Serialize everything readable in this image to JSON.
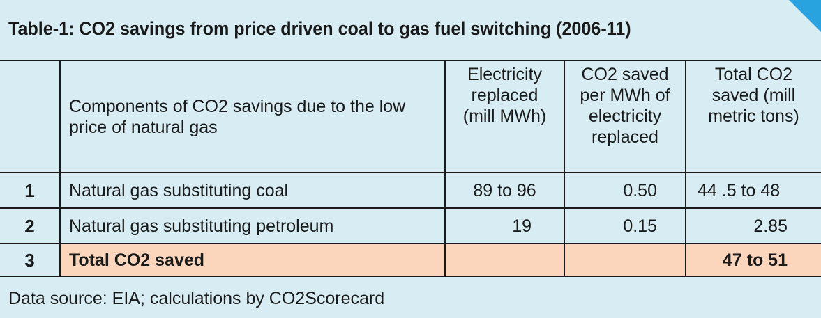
{
  "title": "Table-1: CO2 savings from price driven coal to gas fuel switching (2006-11)",
  "header": {
    "num": "",
    "component": "Components of CO2 savings due to the low price of natural gas",
    "electricity": "Electricity replaced (mill MWh)",
    "per_mwh": "CO2 saved per MWh of electricity replaced",
    "total": "Total CO2 saved (mill metric tons)"
  },
  "rows": [
    {
      "num": "1",
      "component": "Natural gas substituting coal",
      "electricity": "89 to 96",
      "per_mwh": "0.50",
      "total": "44 .5 to 48"
    },
    {
      "num": "2",
      "component": "Natural gas substituting petroleum",
      "electricity": "19",
      "per_mwh": "0.15",
      "total": "2.85"
    }
  ],
  "total_row": {
    "num": "3",
    "component": "Total CO2 saved",
    "electricity": "",
    "per_mwh": "",
    "total": "47 to 51"
  },
  "source": "Data source: EIA; calculations by CO2Scorecard",
  "colors": {
    "background": "#d7ecf3",
    "total_row": "#fbd6bd",
    "corner": "#29a3df"
  }
}
